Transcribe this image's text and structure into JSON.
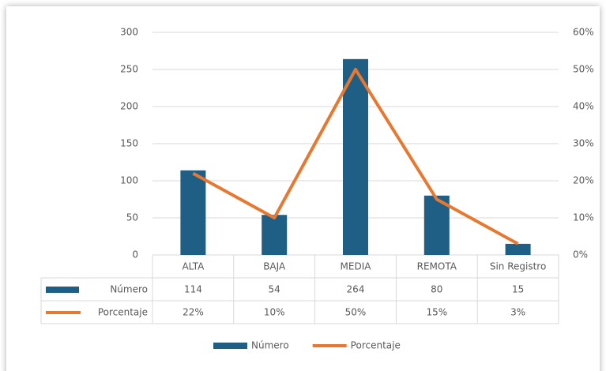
{
  "chart_data": {
    "type": "bar-line",
    "categories": [
      "ALTA",
      "BAJA",
      "MEDIA",
      "REMOTA",
      "Sin Registro"
    ],
    "series": [
      {
        "name": "Número",
        "type": "bar",
        "color": "#1f5f86",
        "values": [
          114,
          54,
          264,
          80,
          15
        ]
      },
      {
        "name": "Porcentaje",
        "type": "line",
        "axis": "y2",
        "color": "#e8782f",
        "values": [
          22,
          10,
          50,
          15,
          3
        ],
        "value_labels": [
          "22%",
          "10%",
          "50%",
          "15%",
          "3%"
        ]
      }
    ],
    "ylim": [
      0,
      300
    ],
    "yticks": [
      0,
      50,
      100,
      150,
      200,
      250,
      300
    ],
    "y2lim": [
      0,
      60
    ],
    "y2ticks": [
      {
        "value": 0,
        "label": "0%"
      },
      {
        "value": 10,
        "label": "10%"
      },
      {
        "value": 20,
        "label": "20%"
      },
      {
        "value": 30,
        "label": "30%"
      },
      {
        "value": 40,
        "label": "40%"
      },
      {
        "value": 50,
        "label": "50%"
      },
      {
        "value": 60,
        "label": "60%"
      }
    ],
    "grid": true,
    "legend": "bottom",
    "data_table": true
  }
}
